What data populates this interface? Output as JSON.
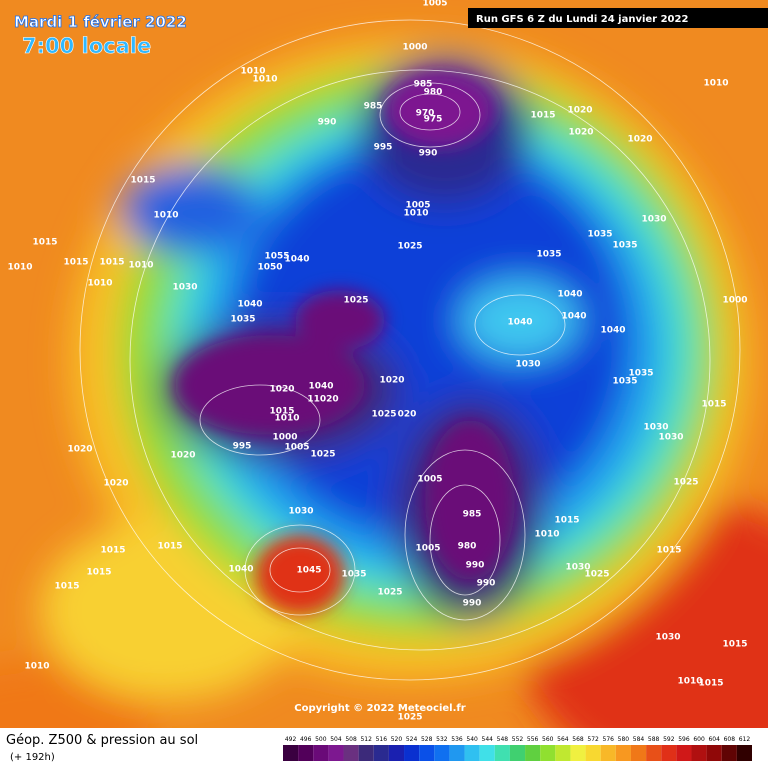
{
  "header": {
    "date": "Mardi 1 février 2022",
    "time": "7:00 locale",
    "run": "Run GFS 6 Z du Lundi 24 janvier 2022"
  },
  "map": {
    "copyright": "Copyright © 2022 Meteociel.fr",
    "isobar_labels": [
      "1005",
      "1000",
      "1010",
      "1010",
      "985",
      "985",
      "980",
      "970",
      "975",
      "990",
      "1015",
      "1020",
      "1020",
      "1020",
      "1010",
      "995",
      "990",
      "1015",
      "1010",
      "1005",
      "1010",
      "1030",
      "1025",
      "1035",
      "1035",
      "1035",
      "1015",
      "1015",
      "1015",
      "1010",
      "1010",
      "1010",
      "1030",
      "1055",
      "1050",
      "1040",
      "1040",
      "1035",
      "1025",
      "1040",
      "1040",
      "1040",
      "1040",
      "1000",
      "1030",
      "1020",
      "1020",
      "1040",
      "11020",
      "1035",
      "1035",
      "1015",
      "1010",
      "1025",
      "020",
      "1000",
      "995",
      "1005",
      "1025",
      "1020",
      "1020",
      "1020",
      "1030",
      "1030",
      "1015",
      "1005",
      "1025",
      "985",
      "1015",
      "1010",
      "1005",
      "980",
      "1030",
      "1015",
      "1015",
      "1015",
      "1015",
      "1040",
      "1045",
      "990",
      "990",
      "1035",
      "1030",
      "1025",
      "1025",
      "990",
      "1015",
      "1030",
      "1015",
      "1010",
      "1010",
      "1015",
      "1025"
    ]
  },
  "footer": {
    "title": "Géop. Z500 & pression au sol",
    "subtitle": "(+ 192h)"
  },
  "legend": {
    "scale": {
      "values": [
        492,
        496,
        500,
        504,
        508,
        512,
        516,
        520,
        524,
        528,
        532,
        536,
        540,
        544,
        548,
        552,
        556,
        560,
        564,
        568,
        572,
        576,
        580,
        584,
        588,
        592,
        596,
        600,
        604,
        608,
        612
      ],
      "colors": [
        "#3a0040",
        "#52005a",
        "#6a0a78",
        "#7d1890",
        "#6a3080",
        "#3c2a7a",
        "#2a2a90",
        "#1a20b0",
        "#0a30d0",
        "#0a50e8",
        "#1070f0",
        "#2098f0",
        "#30c0f0",
        "#40e0e8",
        "#40e0b0",
        "#40d070",
        "#60d040",
        "#90e030",
        "#c0e830",
        "#f0f040",
        "#f8d830",
        "#f8b828",
        "#f89820",
        "#f07818",
        "#e85018",
        "#e03018",
        "#d01818",
        "#b01010",
        "#900808",
        "#600404",
        "#300000"
      ]
    }
  }
}
